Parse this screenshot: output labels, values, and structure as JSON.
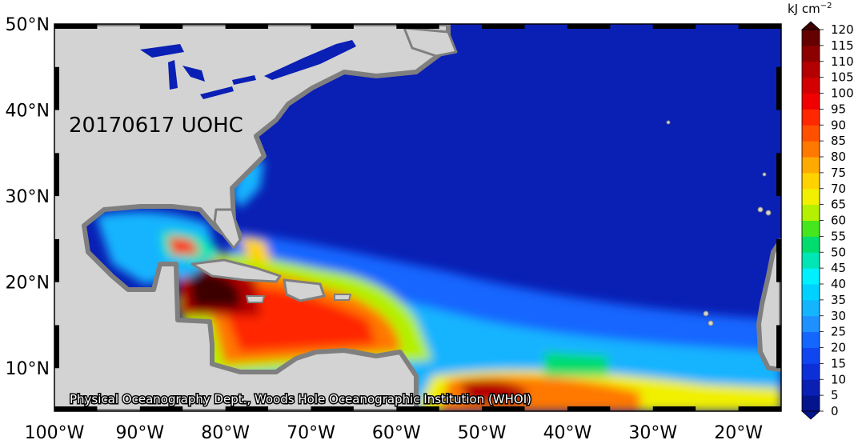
{
  "map": {
    "date_label": "20170617 UOHC",
    "credit": "Physical Oceanography Dept., Woods Hole Oceanographic Institution (WHOI)",
    "lon_ticks": [
      "100°W",
      "90°W",
      "80°W",
      "70°W",
      "60°W",
      "50°W",
      "40°W",
      "30°W",
      "20°W"
    ],
    "lat_ticks": [
      "50°N",
      "40°N",
      "30°N",
      "20°N",
      "10°N"
    ],
    "lon_values": [
      -100,
      -90,
      -80,
      -70,
      -60,
      -50,
      -40,
      -30,
      -20
    ],
    "lat_values": [
      50,
      40,
      30,
      20,
      10
    ],
    "extent": {
      "lon_min": -100,
      "lon_max": -15,
      "lat_min": 5,
      "lat_max": 50
    },
    "land_color": "#d3d3d3",
    "coast_gray": "#7f7f7f",
    "ocean_base_color": "#0a1fb4"
  },
  "colorbar": {
    "unit": "kJ cm",
    "unit_exp": "−2",
    "ticks": [
      "0",
      "5",
      "10",
      "15",
      "20",
      "25",
      "30",
      "35",
      "40",
      "45",
      "50",
      "55",
      "60",
      "65",
      "70",
      "75",
      "80",
      "85",
      "90",
      "95",
      "100",
      "105",
      "110",
      "115",
      "120"
    ],
    "colors": [
      "#04148c",
      "#0a1fb4",
      "#0c2fd8",
      "#1046f0",
      "#1466ff",
      "#1e90ff",
      "#14b4ff",
      "#00d2ff",
      "#00f0ff",
      "#00e6b4",
      "#00dc6e",
      "#46e61e",
      "#b4f000",
      "#f0f000",
      "#ffd200",
      "#ffaa00",
      "#ff7800",
      "#ff5000",
      "#ff2800",
      "#f00000",
      "#d20000",
      "#b40000",
      "#8c0000",
      "#640000",
      "#3c0000"
    ]
  }
}
